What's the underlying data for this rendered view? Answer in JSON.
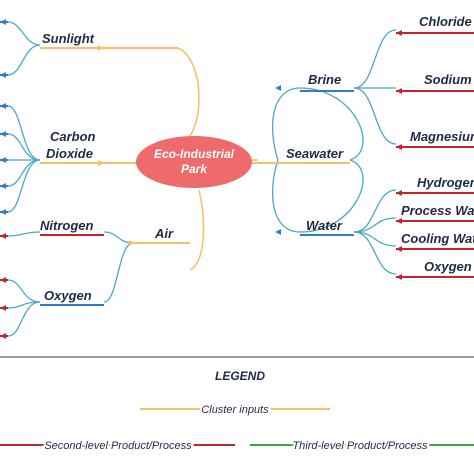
{
  "center": {
    "label_line1": "Eco-Industrial",
    "label_line2": "Park"
  },
  "inputs": {
    "sunlight": "Sunlight",
    "carbon_dioxide_line1": "Carbon",
    "carbon_dioxide_line2": "Dioxide",
    "air": "Air",
    "seawater": "Seawater"
  },
  "second_level": {
    "nitrogen": "Nitrogen",
    "oxygen": "Oxygen",
    "brine": "Brine",
    "water": "Water"
  },
  "third_level": {
    "chloride": "Chloride",
    "sodium": "Sodium",
    "magnesium": "Magnesium",
    "hydrogen": "Hydrogen",
    "process_water": "Process Water",
    "cooling_water": "Cooling Water",
    "oxygen": "Oxygen"
  },
  "legend": {
    "title": "LEGEND",
    "cluster_inputs": "Cluster inputs",
    "second_level": "Second-level Product/Process",
    "third_level": "Third-level Product/Process"
  },
  "colors": {
    "cluster_inputs": "#f5c06a",
    "second_level": "#c0272d",
    "third_level": "#3da843",
    "blue_node": "#2f7fc1",
    "teal_curve": "#4aa9c2",
    "center_fill": "#ef6b6b"
  }
}
